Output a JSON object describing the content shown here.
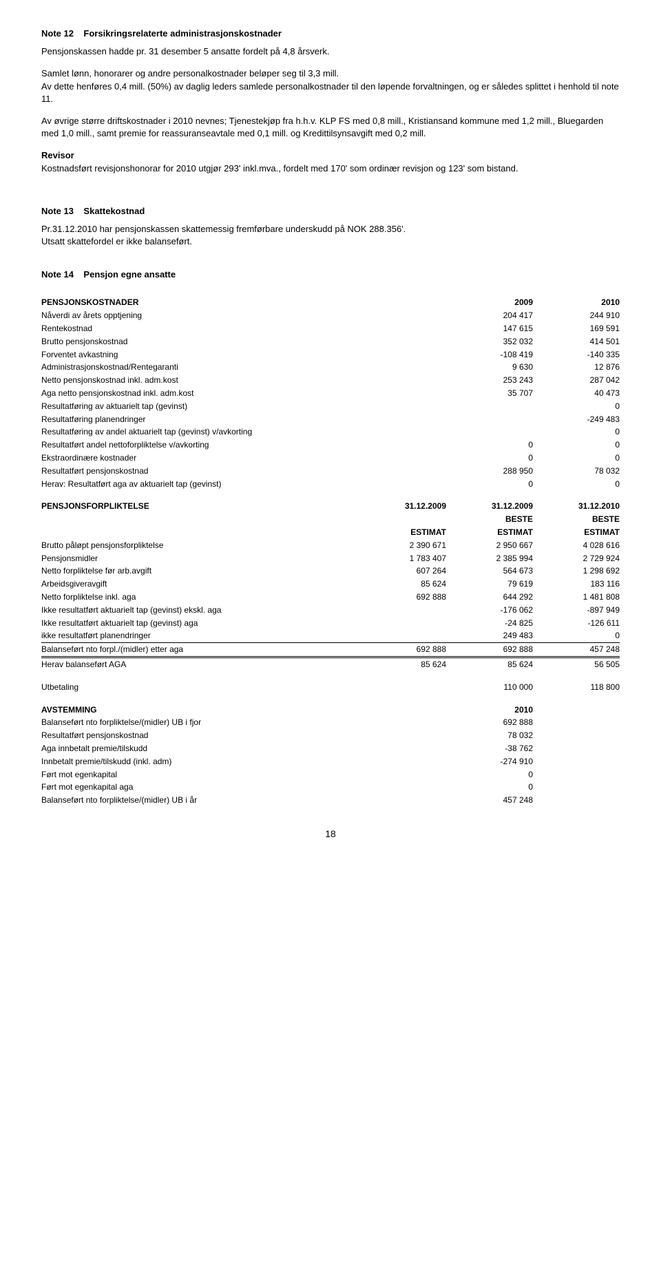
{
  "note12": {
    "title_label": "Note 12",
    "title_text": "Forsikringsrelaterte administrasjonskostnader",
    "p1": "Pensjonskassen hadde pr. 31 desember 5 ansatte fordelt på 4,8 årsverk.",
    "p2": "Samlet lønn, honorarer og andre personalkostnader beløper seg til 3,3 mill.",
    "p3": "Av dette henføres 0,4 mill. (50%) av daglig leders samlede personalkostnader til den løpende forvaltningen, og er således splittet i henhold til note 11.",
    "p4": "Av øvrige større driftskostnader i 2010 nevnes; Tjenestekjøp fra h.h.v. KLP FS med 0,8 mill., Kristiansand kommune med 1,2 mill., Bluegarden med 1,0 mill., samt premie for reassuranseavtale med 0,1 mill. og Kredittilsynsavgift med 0,2 mill.",
    "revisor_label": "Revisor",
    "revisor_text": "Kostnadsført revisjonshonorar for 2010 utgjør 293' inkl.mva., fordelt med 170' som ordinær revisjon og 123' som bistand."
  },
  "note13": {
    "title_label": "Note 13",
    "title_text": "Skattekostnad",
    "p1": "Pr.31.12.2010 har pensjonskassen skattemessig fremførbare underskudd på NOK 288.356'.",
    "p2": "Utsatt skattefordel er ikke balanseført."
  },
  "note14": {
    "title_label": "Note 14",
    "title_text": "Pensjon egne ansatte",
    "pk_header": "PENSJONSKOSTNADER",
    "pk_year1": "2009",
    "pk_year2": "2010",
    "pk_rows": [
      {
        "label": "Nåverdi av årets opptjening",
        "v1": "204 417",
        "v2": "244 910"
      },
      {
        "label": "Rentekostnad",
        "v1": "147 615",
        "v2": "169 591"
      },
      {
        "label": "Brutto pensjonskostnad",
        "v1": "352 032",
        "v2": "414 501"
      },
      {
        "label": "Forventet avkastning",
        "v1": "-108 419",
        "v2": "-140 335"
      },
      {
        "label": "Administrasjonskostnad/Rentegaranti",
        "v1": "9 630",
        "v2": "12 876"
      },
      {
        "label": "Netto pensjonskostnad inkl. adm.kost",
        "v1": "253 243",
        "v2": "287 042"
      },
      {
        "label": "Aga netto pensjonskostnad inkl. adm.kost",
        "v1": "35 707",
        "v2": "40 473"
      },
      {
        "label": "Resultatføring av aktuarielt tap (gevinst)",
        "v1": "",
        "v2": "0"
      },
      {
        "label": "Resultatføring planendringer",
        "v1": "",
        "v2": "-249 483"
      },
      {
        "label": "Resultatføring av andel aktuarielt tap (gevinst) v/avkorting",
        "v1": "",
        "v2": "0"
      },
      {
        "label": "Resultatført andel nettoforpliktelse v/avkorting",
        "v1": "0",
        "v2": "0"
      },
      {
        "label": "Ekstraordinære kostnader",
        "v1": "0",
        "v2": "0"
      },
      {
        "label": "Resultatført pensjonskostnad",
        "v1": "288 950",
        "v2": "78 032"
      },
      {
        "label": "Herav: Resultatført aga av aktuarielt tap (gevinst)",
        "v1": "0",
        "v2": "0"
      }
    ],
    "pf_header": "PENSJONSFORPLIKTELSE",
    "pf_dates": [
      "31.12.2009",
      "31.12.2009",
      "31.12.2010"
    ],
    "pf_sub1": [
      "",
      "BESTE",
      "BESTE"
    ],
    "pf_sub2": [
      "ESTIMAT",
      "ESTIMAT",
      "ESTIMAT"
    ],
    "pf_rows": [
      {
        "label": "Brutto påløpt pensjonsforpliktelse",
        "v1": "2 390 671",
        "v2": "2 950 667",
        "v3": "4 028 616"
      },
      {
        "label": "Pensjonsmidler",
        "v1": "1 783 407",
        "v2": "2 385 994",
        "v3": "2 729 924"
      },
      {
        "label": "Netto forpliktelse før arb.avgift",
        "v1": "607 264",
        "v2": "564 673",
        "v3": "1 298 692"
      },
      {
        "label": "Arbeidsgiveravgift",
        "v1": "85 624",
        "v2": "79 619",
        "v3": "183 116"
      },
      {
        "label": "Netto forpliktelse inkl. aga",
        "v1": "692 888",
        "v2": "644 292",
        "v3": "1 481 808"
      },
      {
        "label": "Ikke resultatført aktuarielt tap (gevinst) ekskl. aga",
        "v1": "",
        "v2": "-176 062",
        "v3": "-897 949"
      },
      {
        "label": "Ikke resultatført aktuarielt tap (gevinst) aga",
        "v1": "",
        "v2": "-24 825",
        "v3": "-126 611"
      },
      {
        "label": "ikke resultatført planendringer",
        "v1": "",
        "v2": "249 483",
        "v3": "0"
      }
    ],
    "pf_balance": {
      "label": "Balanseført nto forpl./(midler) etter aga",
      "v1": "692 888",
      "v2": "692 888",
      "v3": "457 248"
    },
    "pf_herav": {
      "label": "Herav balanseført AGA",
      "v1": "85 624",
      "v2": "85 624",
      "v3": "56 505"
    },
    "utbetaling": {
      "label": "Utbetaling",
      "v1": "",
      "v2": "110 000",
      "v3": "118 800"
    },
    "av_header": "AVSTEMMING",
    "av_year": "2010",
    "av_rows": [
      {
        "label": "Balanseført nto forpliktelse/(midler) UB i fjor",
        "v": "692 888"
      },
      {
        "label": "Resultatført pensjonskostnad",
        "v": "78 032"
      },
      {
        "label": "Aga innbetalt premie/tilskudd",
        "v": "-38 762"
      },
      {
        "label": "Innbetalt premie/tilskudd (inkl. adm)",
        "v": "-274 910"
      },
      {
        "label": "Ført mot egenkapital",
        "v": "0"
      },
      {
        "label": "Ført mot egenkapital aga",
        "v": "0"
      },
      {
        "label": "Balanseført nto forpliktelse/(midler) UB i år",
        "v": "457 248"
      }
    ]
  },
  "page_number": "18"
}
